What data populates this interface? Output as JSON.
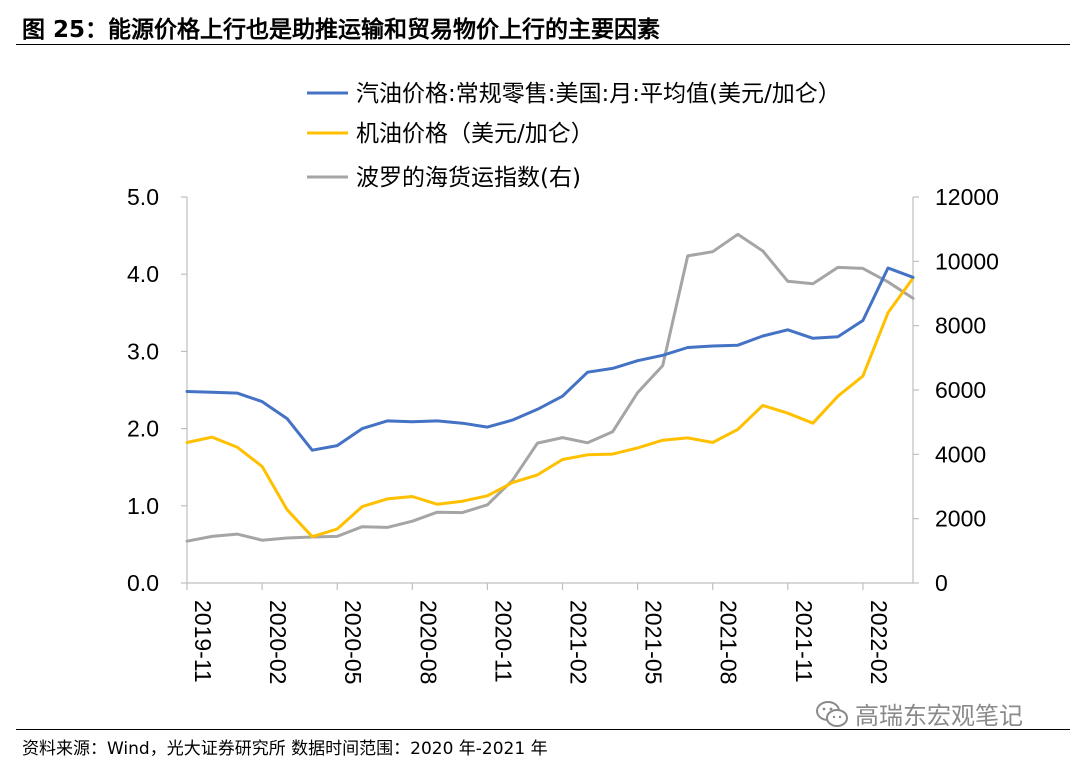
{
  "header": {
    "title": "图 25：能源价格上行也是助推运输和贸易物价上行的主要因素"
  },
  "footer": {
    "source": "资料来源：Wind，光大证券研究所  数据时间范围：2020 年-2021 年",
    "watermark": "高瑞东宏观笔记",
    "watermark_icon": "wechat-icon"
  },
  "chart_data": {
    "type": "line",
    "x": [
      "2019-11",
      "2019-12",
      "2020-01",
      "2020-02",
      "2020-03",
      "2020-04",
      "2020-05",
      "2020-06",
      "2020-07",
      "2020-08",
      "2020-09",
      "2020-10",
      "2020-11",
      "2020-12",
      "2021-01",
      "2021-02",
      "2021-03",
      "2021-04",
      "2021-05",
      "2021-06",
      "2021-07",
      "2021-08",
      "2021-09",
      "2021-10",
      "2021-11",
      "2021-12",
      "2022-01",
      "2022-02",
      "2022-03",
      "2022-04"
    ],
    "xticks": [
      "2019-11",
      "2020-02",
      "2020-05",
      "2020-08",
      "2020-11",
      "2021-02",
      "2021-05",
      "2021-08",
      "2021-11",
      "2022-02"
    ],
    "left_axis": {
      "ylim": [
        0,
        5
      ],
      "ticks": [
        "0.0",
        "1.0",
        "2.0",
        "3.0",
        "4.0",
        "5.0"
      ]
    },
    "right_axis": {
      "ylim": [
        0,
        12000
      ],
      "ticks": [
        "0",
        "2000",
        "4000",
        "6000",
        "8000",
        "10000",
        "12000"
      ]
    },
    "grid": false,
    "legend_position": "top",
    "series": [
      {
        "name": "汽油价格:常规零售:美国:月:平均值(美元/加仑）",
        "axis": "left",
        "color": "#4472c4",
        "values": [
          2.48,
          2.47,
          2.46,
          2.35,
          2.13,
          1.72,
          1.78,
          2.0,
          2.1,
          2.09,
          2.1,
          2.07,
          2.02,
          2.11,
          2.25,
          2.42,
          2.73,
          2.78,
          2.88,
          2.95,
          3.05,
          3.07,
          3.08,
          3.2,
          3.28,
          3.17,
          3.19,
          3.4,
          4.08,
          3.96
        ]
      },
      {
        "name": "机油价格（美元/加仑）",
        "axis": "left",
        "color": "#ffc000",
        "values": [
          1.82,
          1.89,
          1.76,
          1.51,
          0.95,
          0.6,
          0.7,
          0.99,
          1.09,
          1.12,
          1.02,
          1.06,
          1.13,
          1.3,
          1.4,
          1.6,
          1.66,
          1.67,
          1.75,
          1.85,
          1.88,
          1.82,
          1.99,
          2.3,
          2.2,
          2.07,
          2.42,
          2.68,
          3.5,
          3.95
        ]
      },
      {
        "name": "波罗的海货运指数(右)",
        "axis": "right",
        "color": "#a5a5a5",
        "values": [
          1300,
          1450,
          1520,
          1330,
          1400,
          1430,
          1450,
          1750,
          1730,
          1920,
          2200,
          2190,
          2430,
          3190,
          4350,
          4520,
          4360,
          4700,
          5920,
          6760,
          10170,
          10300,
          10840,
          10320,
          9380,
          9300,
          9810,
          9780,
          9360,
          8850
        ]
      }
    ]
  }
}
